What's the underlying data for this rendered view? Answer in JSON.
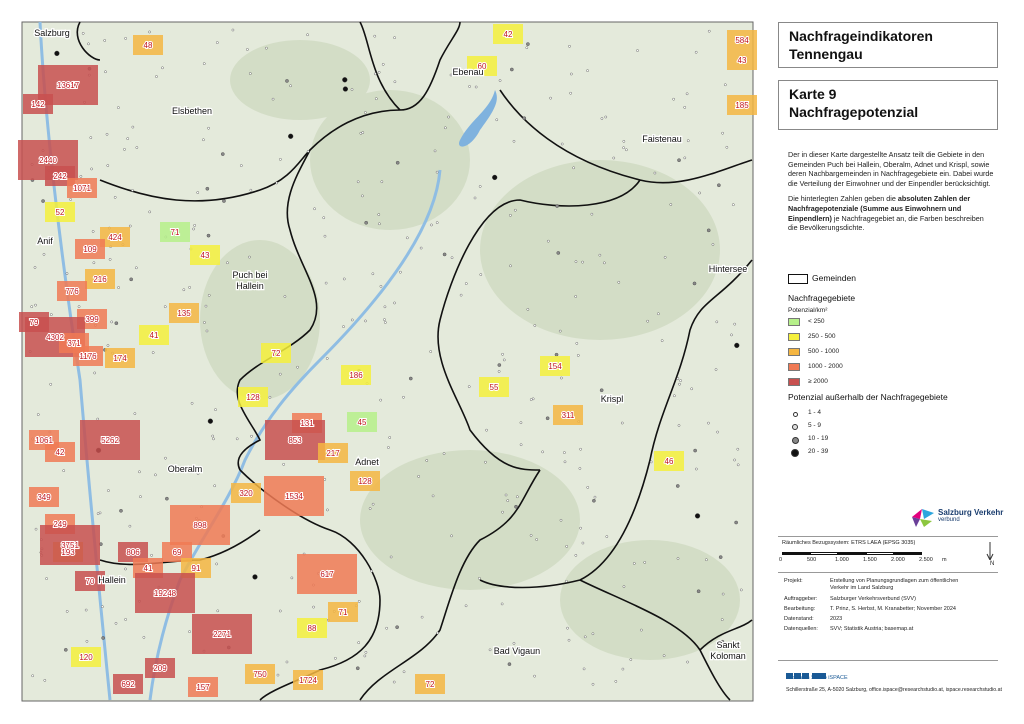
{
  "header": {
    "title": "Nachfrageindikatoren Tennengau",
    "map_title": "Karte 9 Nachfragepotenzial"
  },
  "description": {
    "p1": "Der in dieser Karte dargestellte Ansatz teilt die Gebiete in den Gemeinden Puch bei Hallein, Oberalm, Adnet und Krispl, sowie deren Nachbargemeinden in Nachfragegebiete ein. Dabei wurde die Verteilung der Einwohner und der Einpendler berücksichtigt.",
    "p2_start": "Die hinterlegten Zahlen geben die ",
    "p2_bold": "absoluten Zahlen der Nachfragepotenziale (Summe aus Einwohnern und Einpendlern)",
    "p2_end": " je Nachfragegebiet an, die Farben beschreiben die Bevölkerungsdichte."
  },
  "legend": {
    "municipalities": "Gemeinden",
    "areas_title": "Nachfragegebiete",
    "unit": "Potenzial/km²",
    "classes": [
      {
        "label": "< 250",
        "color": "#b6f08a"
      },
      {
        "label": "250 - 500",
        "color": "#f5f03c"
      },
      {
        "label": "500 - 1000",
        "color": "#f5b642"
      },
      {
        "label": "1000 - 2000",
        "color": "#f07a55"
      },
      {
        "label": "≥ 2000",
        "color": "#c8504f"
      }
    ],
    "outside_title": "Potenzial außerhalb der Nachfragegebiete",
    "dots": [
      "1 - 4",
      "5 - 9",
      "10 - 19",
      "20 - 39"
    ]
  },
  "logo": {
    "name": "Salzburg Verkehr",
    "sub": "verbund"
  },
  "scale": {
    "reference": "Räumliches Bezugssystem: ETRS LAEA (EPSG 3035)",
    "ticks": [
      "0",
      "500",
      "1.000",
      "1.500",
      "2.000",
      "2.500"
    ],
    "unit": "m",
    "north": "N"
  },
  "project": [
    {
      "key": "Projekt:",
      "value": "Erstellung von Planungsgrundlagen zum öffentlichen Verkehr im Land Salzburg"
    },
    {
      "key": "Auftraggeber:",
      "value": "Salzburger Verkehrsverbund (SVV)"
    },
    {
      "key": "Bearbeitung:",
      "value": "T. Prinz, S. Herbst, M. Kranabetter; November 2024"
    },
    {
      "key": "Datenstand:",
      "value": "2023"
    },
    {
      "key": "Datenquellen:",
      "value": "SVV; Statistik Austria; basemap.at"
    }
  ],
  "footer": {
    "org": "Research Studio iSPACE",
    "address": "Schillerstraße 25, A-5020 Salzburg, office.ispace@researchstudio.at, ispace.researchstudio.at"
  },
  "map": {
    "places": [
      [
        "Salzburg"
      ],
      [
        "Elsbethen"
      ],
      [
        "Ebenau"
      ],
      [
        "Faistenau"
      ],
      [
        "Anif"
      ],
      [
        "Puch bei",
        "Hallein"
      ],
      [
        "Hintersee"
      ],
      [
        "Krispl"
      ],
      [
        "Oberalm"
      ],
      [
        "Adnet"
      ],
      [
        "Hallein"
      ],
      [
        "Bad Vigaun"
      ],
      [
        "Sankt",
        "Koloman"
      ]
    ],
    "areas": [
      {
        "label": "48",
        "color": "#f5b642"
      },
      {
        "label": "42",
        "color": "#f5f03c"
      },
      {
        "label": "584",
        "color": "#f5b642"
      },
      {
        "label": "43",
        "color": "#f5b642"
      },
      {
        "label": "60",
        "color": "#f5f03c"
      },
      {
        "label": "13617",
        "color": "#c8504f"
      },
      {
        "label": "142",
        "color": "#c8504f"
      },
      {
        "label": "185",
        "color": "#f5b642"
      },
      {
        "label": "2440",
        "color": "#c8504f"
      },
      {
        "label": "242",
        "color": "#c8504f"
      },
      {
        "label": "1071",
        "color": "#f07a55"
      },
      {
        "label": "52",
        "color": "#f5f03c"
      },
      {
        "label": "71",
        "color": "#b6f08a"
      },
      {
        "label": "424",
        "color": "#f5b642"
      },
      {
        "label": "109",
        "color": "#f07a55"
      },
      {
        "label": "43",
        "color": "#f5f03c"
      },
      {
        "label": "216",
        "color": "#f5b642"
      },
      {
        "label": "776",
        "color": "#f07a55"
      },
      {
        "label": "399",
        "color": "#f07a55"
      },
      {
        "label": "79",
        "color": "#c8504f"
      },
      {
        "label": "135",
        "color": "#f5b642"
      },
      {
        "label": "4302",
        "color": "#c8504f"
      },
      {
        "label": "371",
        "color": "#f07a55"
      },
      {
        "label": "41",
        "color": "#f5f03c"
      },
      {
        "label": "1176",
        "color": "#f07a55"
      },
      {
        "label": "174",
        "color": "#f5b642"
      },
      {
        "label": "72",
        "color": "#f5f03c"
      },
      {
        "label": "186",
        "color": "#f5f03c"
      },
      {
        "label": "55",
        "color": "#f5f03c"
      },
      {
        "label": "154",
        "color": "#f5f03c"
      },
      {
        "label": "128",
        "color": "#f5f03c"
      },
      {
        "label": "311",
        "color": "#f5b642"
      },
      {
        "label": "131",
        "color": "#f07a55"
      },
      {
        "label": "45",
        "color": "#b6f08a"
      },
      {
        "label": "853",
        "color": "#c8504f"
      },
      {
        "label": "1061",
        "color": "#f07a55"
      },
      {
        "label": "42",
        "color": "#f07a55"
      },
      {
        "label": "5262",
        "color": "#c8504f"
      },
      {
        "label": "217",
        "color": "#f5b642"
      },
      {
        "label": "46",
        "color": "#f5f03c"
      },
      {
        "label": "128",
        "color": "#f5b642"
      },
      {
        "label": "320",
        "color": "#f5b642"
      },
      {
        "label": "1534",
        "color": "#f07a55"
      },
      {
        "label": "349",
        "color": "#f07a55"
      },
      {
        "label": "249",
        "color": "#f07a55"
      },
      {
        "label": "898",
        "color": "#f07a55"
      },
      {
        "label": "193",
        "color": "#f5b642"
      },
      {
        "label": "3751",
        "color": "#c8504f"
      },
      {
        "label": "806",
        "color": "#c8504f"
      },
      {
        "label": "69",
        "color": "#f07a55"
      },
      {
        "label": "41",
        "color": "#f07a55"
      },
      {
        "label": "91",
        "color": "#f5b642"
      },
      {
        "label": "617",
        "color": "#f07a55"
      },
      {
        "label": "70",
        "color": "#c8504f"
      },
      {
        "label": "19248",
        "color": "#c8504f"
      },
      {
        "label": "71",
        "color": "#f5b642"
      },
      {
        "label": "88",
        "color": "#f5f03c"
      },
      {
        "label": "2271",
        "color": "#c8504f"
      },
      {
        "label": "120",
        "color": "#f5f03c"
      },
      {
        "label": "209",
        "color": "#c8504f"
      },
      {
        "label": "750",
        "color": "#f5b642"
      },
      {
        "label": "692",
        "color": "#c8504f"
      },
      {
        "label": "157",
        "color": "#f07a55"
      },
      {
        "label": "1724",
        "color": "#f5b642"
      },
      {
        "label": "72",
        "color": "#f5b642"
      }
    ]
  }
}
